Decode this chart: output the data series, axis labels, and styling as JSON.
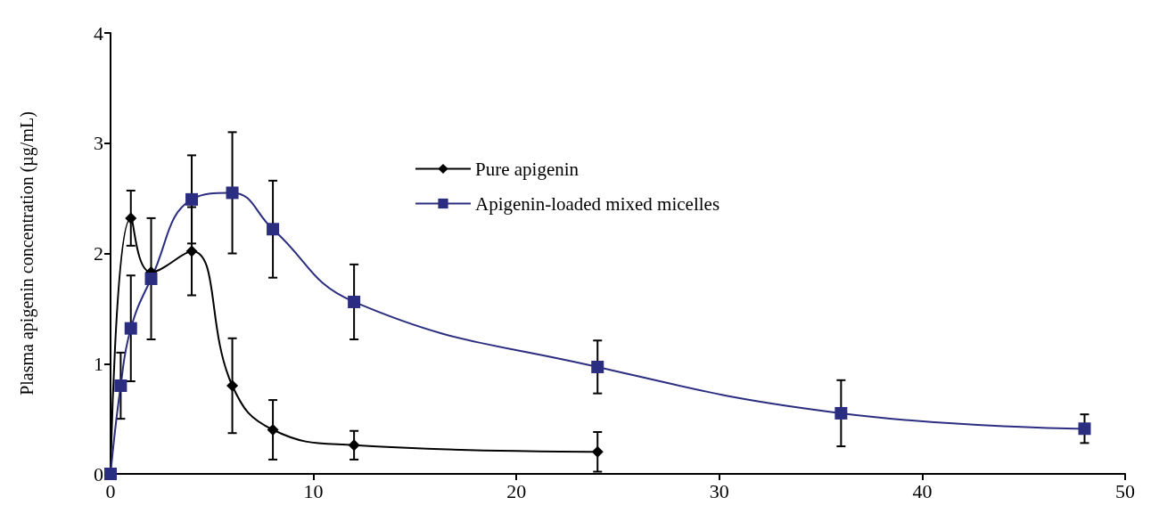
{
  "chart_data": {
    "type": "line",
    "xlabel": null,
    "ylabel": "Plasma apigenin concentration (µg/mL)",
    "xlim": [
      0,
      50
    ],
    "xticks": [
      0,
      10,
      20,
      30,
      40,
      50
    ],
    "ylim": [
      0,
      4
    ],
    "yticks": [
      0,
      1,
      2,
      3,
      4
    ],
    "grid": false,
    "legend": "top",
    "line_style": "solid",
    "series": [
      {
        "name": "Pure apigenin",
        "color": "#000000",
        "marker": "diamond",
        "x": [
          0,
          1,
          2,
          4,
          6,
          8,
          12,
          24
        ],
        "values": [
          0,
          2.32,
          1.83,
          2.02,
          0.8,
          0.4,
          0.26,
          0.2
        ],
        "errors": [
          null,
          0.25,
          null,
          0.4,
          0.43,
          0.27,
          0.13,
          0.18
        ]
      },
      {
        "name": "Apigenin-loaded mixed micelles",
        "color": "#2b2d80",
        "marker": "square",
        "x": [
          0,
          0.5,
          1,
          2,
          4,
          6,
          8,
          12,
          24,
          36,
          48
        ],
        "values": [
          0,
          0.8,
          1.32,
          1.77,
          2.49,
          2.55,
          2.22,
          1.56,
          0.97,
          0.55,
          0.41
        ],
        "errors": [
          null,
          0.3,
          0.48,
          0.55,
          0.4,
          0.55,
          0.44,
          0.34,
          0.24,
          0.3,
          0.13
        ]
      }
    ]
  }
}
